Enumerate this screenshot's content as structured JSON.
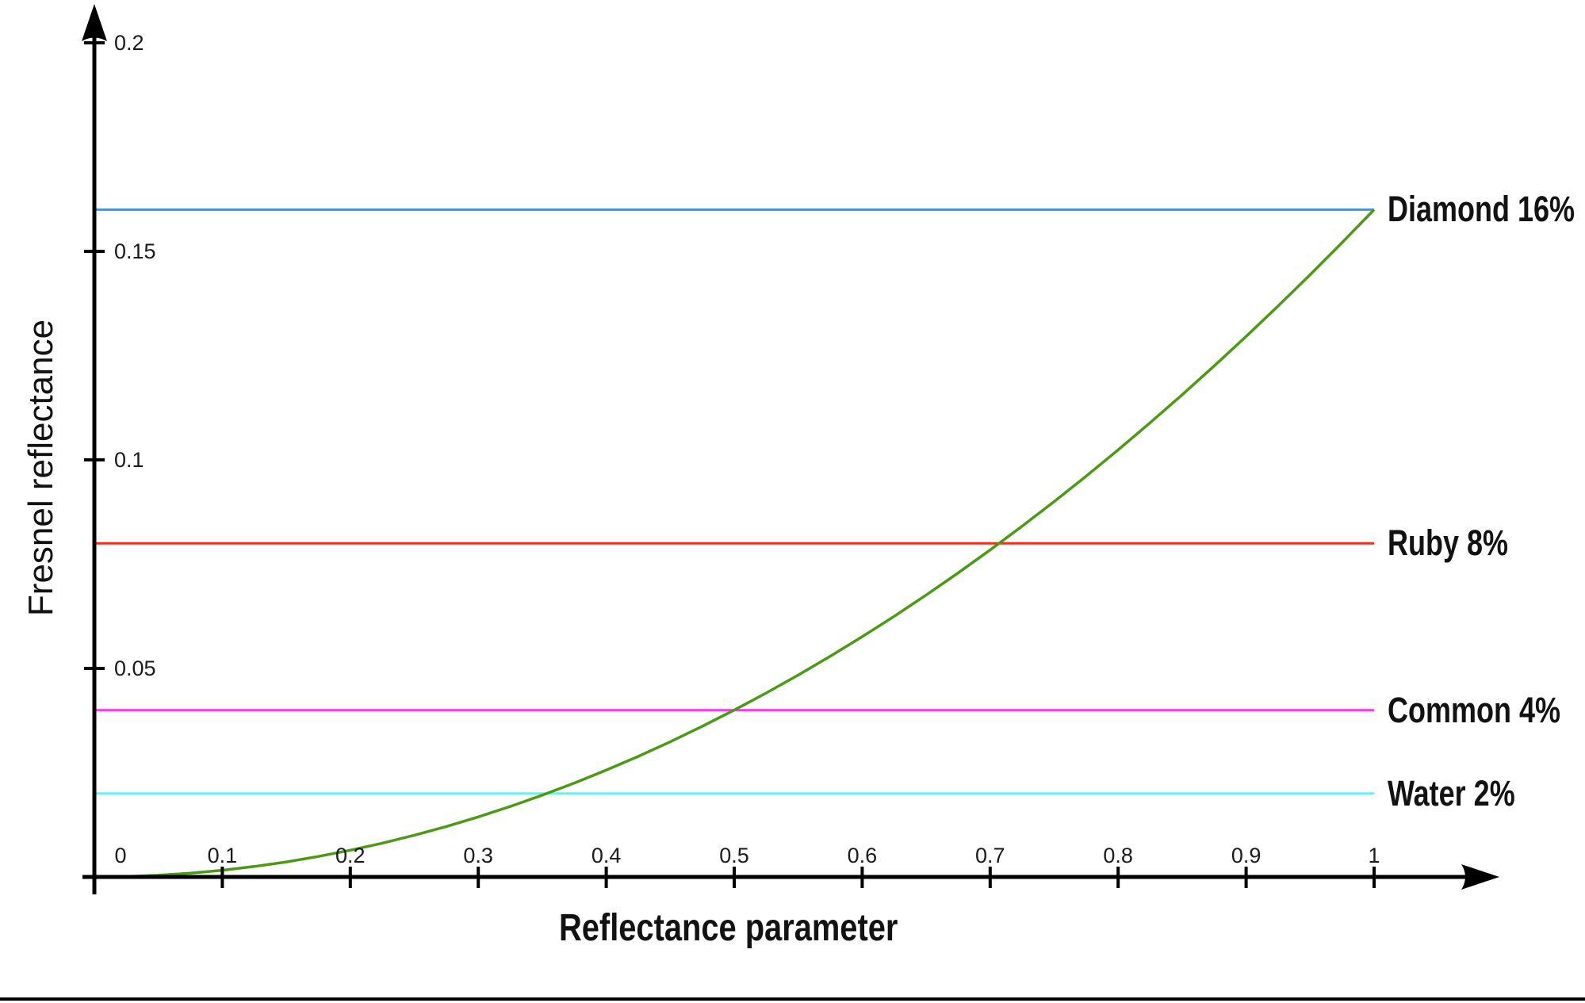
{
  "chart_data": {
    "type": "line",
    "title": "",
    "xlabel": "Reflectance parameter",
    "ylabel": "Fresnel reflectance",
    "xlim": [
      0,
      1
    ],
    "ylim": [
      0,
      0.2
    ],
    "grid": false,
    "legend_position": "right-of-lines",
    "axis_color": "#000000",
    "background_color": "#ffffff",
    "x_tick_values": [
      0,
      0.1,
      0.2,
      0.3,
      0.4,
      0.5,
      0.6,
      0.7,
      0.8,
      0.9,
      1
    ],
    "x_tick_labels": [
      "0",
      "0.1",
      "0.2",
      "0.3",
      "0.4",
      "0.5",
      "0.6",
      "0.7",
      "0.8",
      "0.9",
      "1"
    ],
    "y_tick_values": [
      0.05,
      0.1,
      0.15,
      0.2
    ],
    "y_tick_labels": [
      "0.05",
      "0.1",
      "0.15",
      "0.2"
    ],
    "curve": {
      "name": "fresnel-reflectance-curve",
      "color": "#4C9A14",
      "x": [
        0,
        0.025,
        0.05,
        0.075,
        0.1,
        0.125,
        0.15,
        0.175,
        0.2,
        0.225,
        0.25,
        0.275,
        0.3,
        0.325,
        0.35,
        0.375,
        0.4,
        0.425,
        0.45,
        0.475,
        0.5,
        0.525,
        0.55,
        0.575,
        0.6,
        0.625,
        0.65,
        0.675,
        0.7,
        0.725,
        0.75,
        0.775,
        0.8,
        0.825,
        0.85,
        0.875,
        0.9,
        0.925,
        0.95,
        0.975,
        1
      ],
      "y": [
        0,
        0.0001,
        0.0004,
        0.0009,
        0.0016,
        0.0025,
        0.0036,
        0.0049,
        0.0064,
        0.0081,
        0.01,
        0.0121,
        0.0144,
        0.0169,
        0.0196,
        0.0225,
        0.0256,
        0.0289,
        0.0324,
        0.0361,
        0.04,
        0.0441,
        0.0484,
        0.0529,
        0.0576,
        0.0625,
        0.0676,
        0.0729,
        0.0784,
        0.0841,
        0.09,
        0.0961,
        0.1024,
        0.1089,
        0.1156,
        0.1225,
        0.1296,
        0.1369,
        0.1444,
        0.1521,
        0.16
      ]
    },
    "reference_lines": [
      {
        "label": "Diamond 16%",
        "value": 0.16,
        "color": "#2E9AF0"
      },
      {
        "label": "Ruby 8%",
        "value": 0.08,
        "color": "#FC2C1C"
      },
      {
        "label": "Common 4%",
        "value": 0.04,
        "color": "#FB3DF2"
      },
      {
        "label": "Water 2%",
        "value": 0.02,
        "color": "#4CFDFD"
      }
    ]
  }
}
